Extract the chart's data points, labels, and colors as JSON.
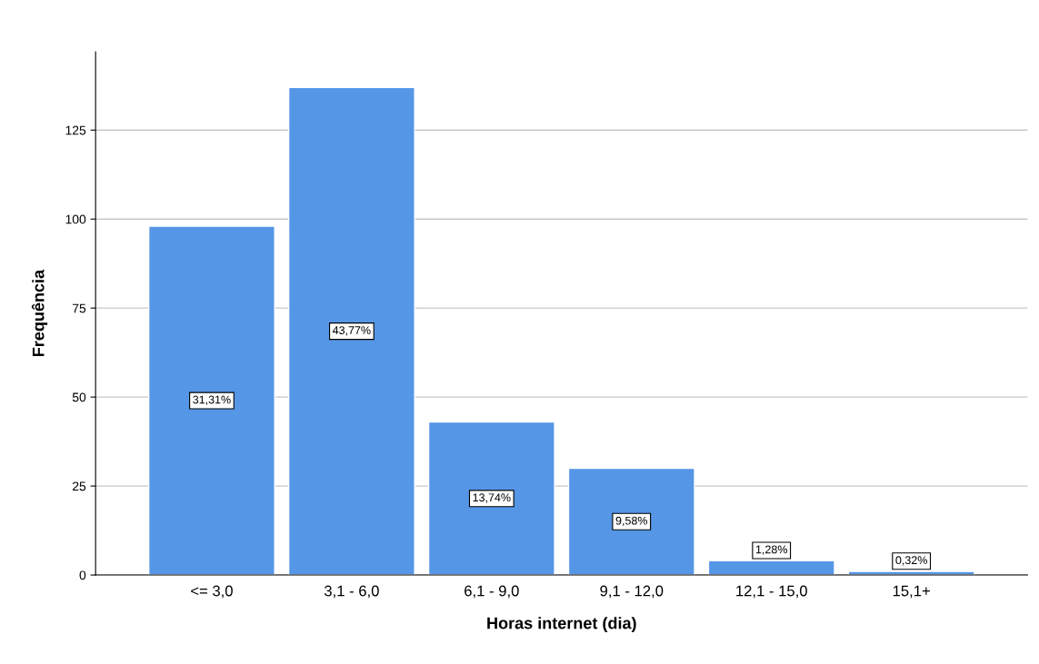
{
  "chart_data": {
    "type": "bar",
    "xlabel": "Horas internet (dia)",
    "ylabel": "Frequência",
    "categories": [
      "<= 3,0",
      "3,1 - 6,0",
      "6,1 - 9,0",
      "9,1 - 12,0",
      "12,1 - 15,0",
      "15,1+"
    ],
    "values": [
      98,
      137,
      43,
      30,
      4,
      1
    ],
    "annotations": [
      "31,31%",
      "43,77%",
      "13,74%",
      "9,58%",
      "1,28%",
      "0,32%"
    ],
    "color": "#5596e6",
    "ylim": [
      0,
      147
    ],
    "yticks": [
      0,
      25,
      50,
      75,
      100,
      125
    ],
    "grid": "y"
  }
}
